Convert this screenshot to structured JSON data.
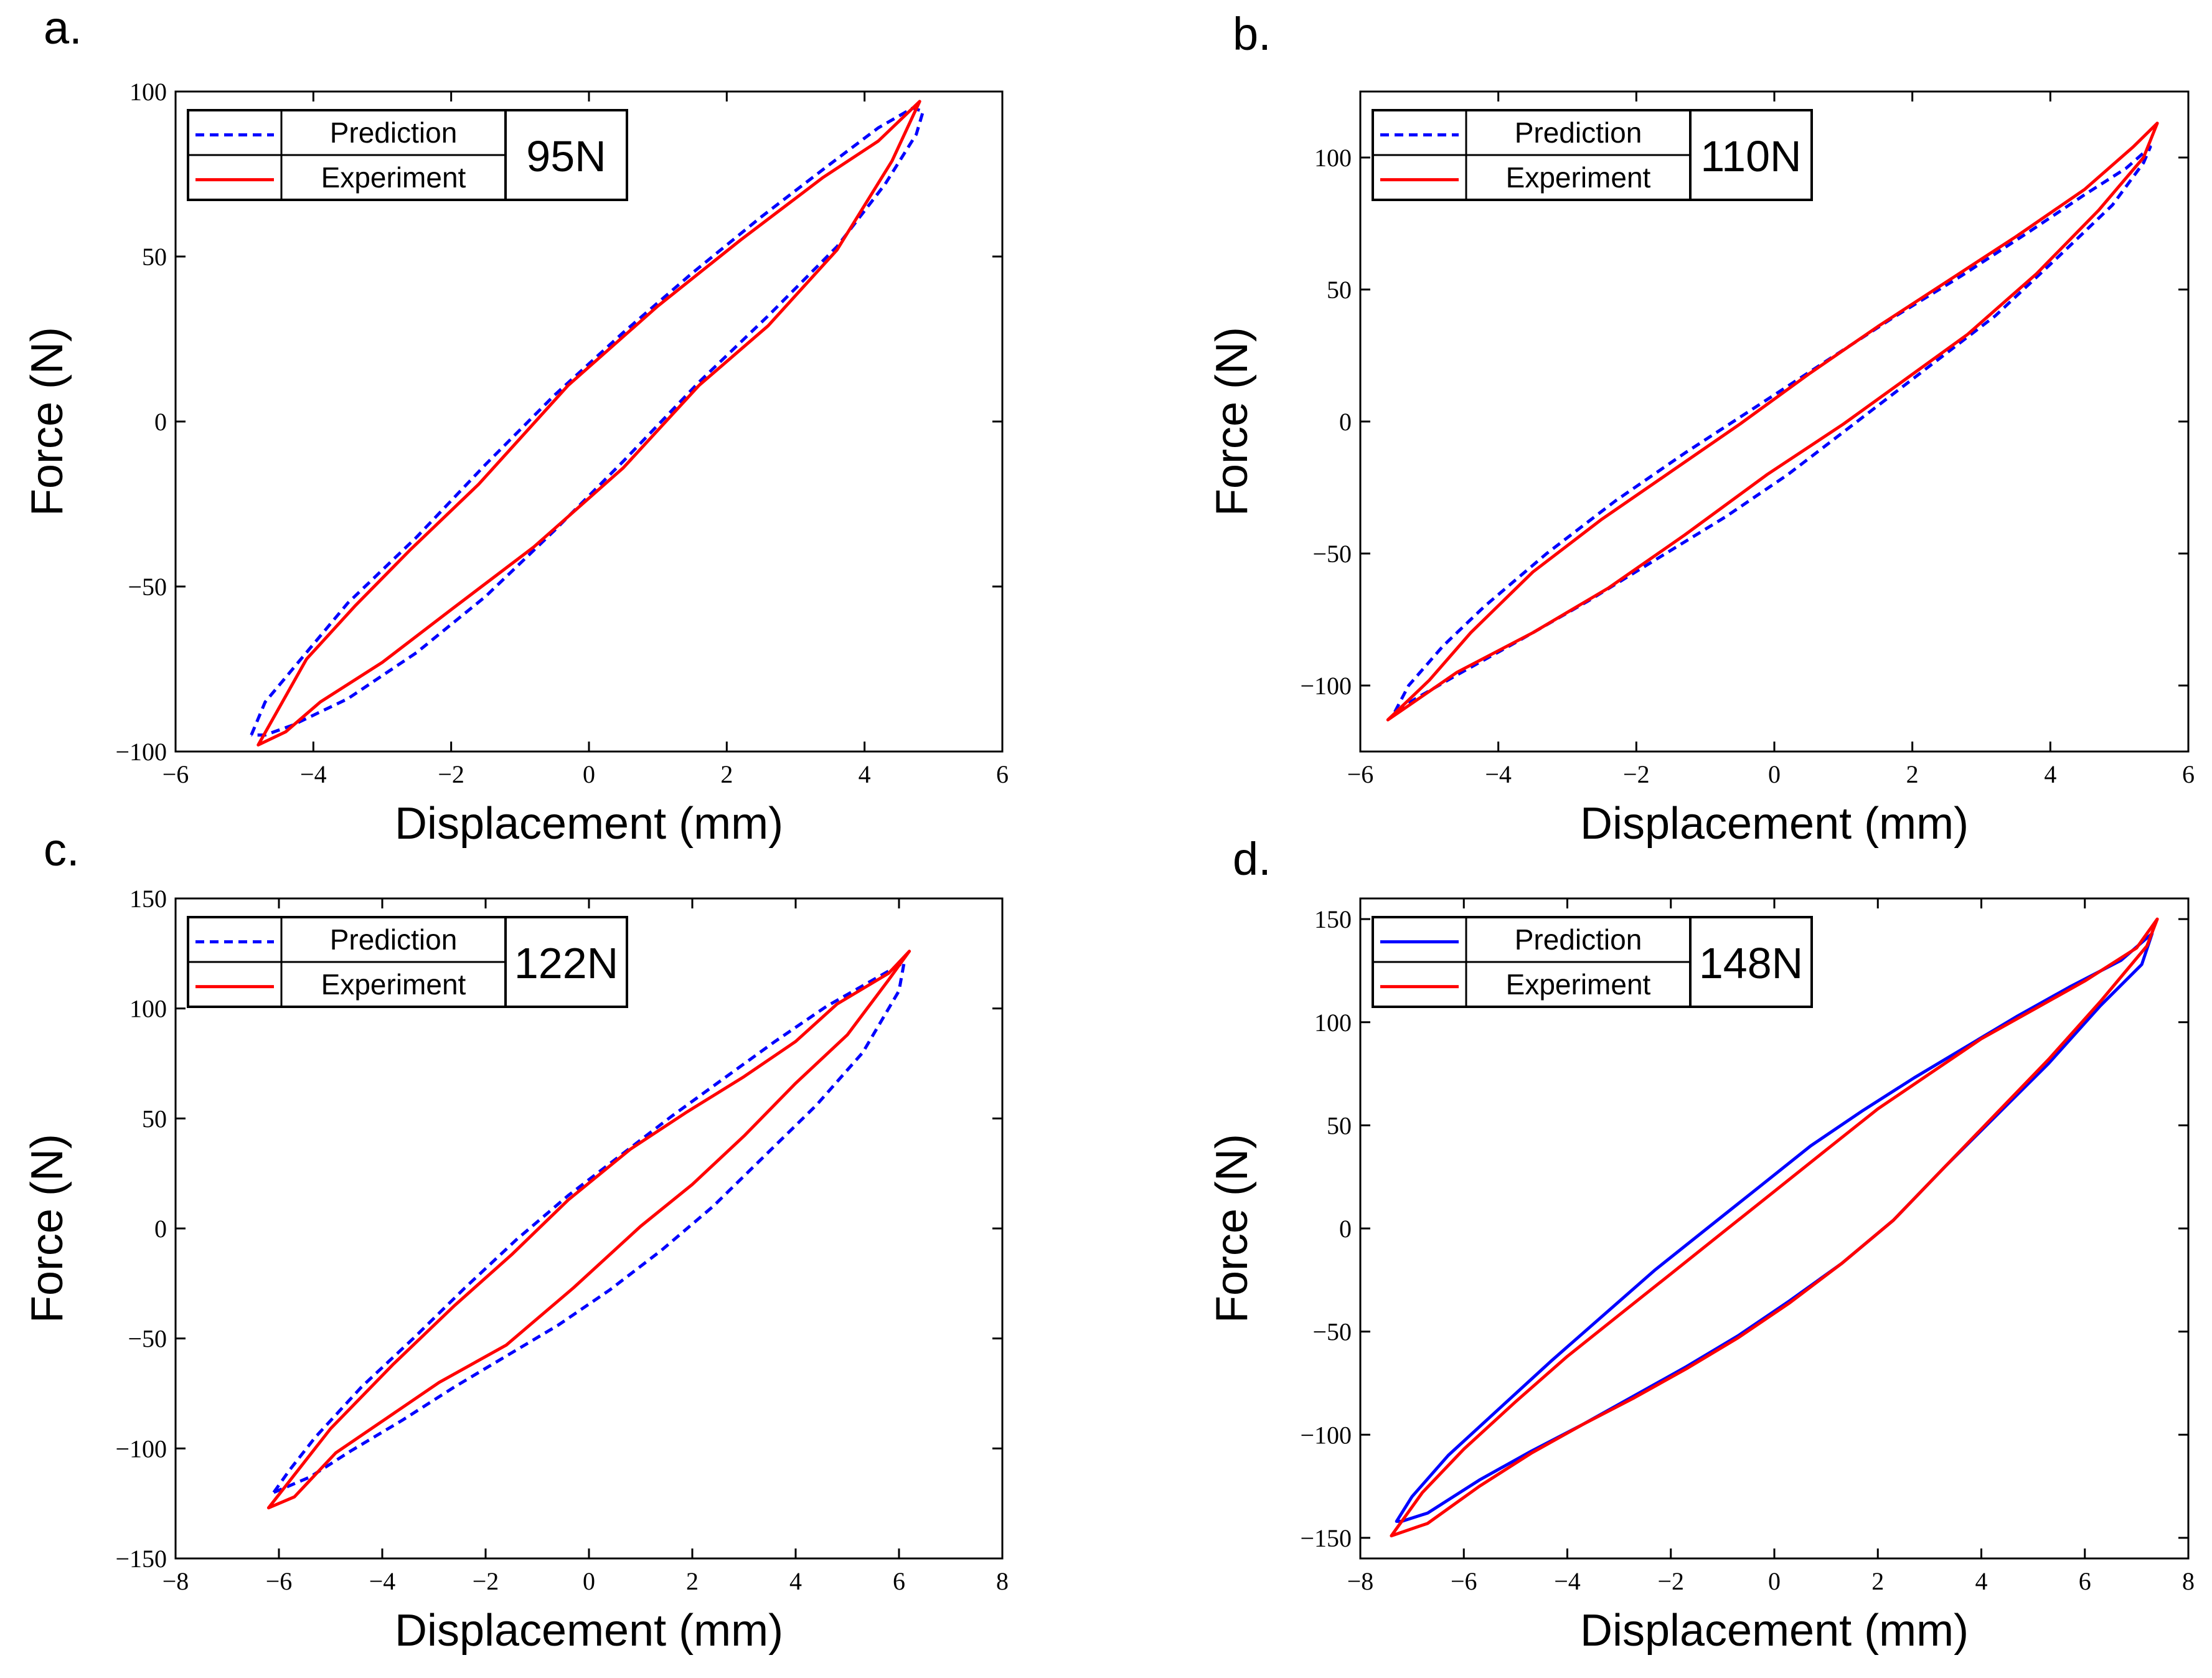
{
  "figure": {
    "panels": [
      {
        "letter": "a.",
        "force_label": "95N"
      },
      {
        "letter": "b.",
        "force_label": "110N"
      },
      {
        "letter": "c.",
        "force_label": "122N"
      },
      {
        "letter": "d.",
        "force_label": "148N"
      }
    ]
  },
  "colors": {
    "prediction": "#0000ff",
    "experiment": "#ff0000",
    "axis": "#000000"
  },
  "chart_data": [
    {
      "type": "line",
      "panel": "a.",
      "xlabel": "Displacement (mm)",
      "ylabel": "Force (N)",
      "xlim": [
        -6,
        6
      ],
      "ylim": [
        -100,
        100
      ],
      "xticks": [
        -6,
        -4,
        -2,
        0,
        2,
        4,
        6
      ],
      "yticks": [
        -100,
        -50,
        0,
        50,
        100
      ],
      "annotation": "95N",
      "legend": [
        "Prediction",
        "Experiment"
      ],
      "legend_position": "top-left",
      "series": [
        {
          "name": "Prediction",
          "style": "dashed",
          "x": [
            -4.9,
            -4.7,
            -4.3,
            -3.5,
            -2.5,
            -1.5,
            -0.5,
            0.5,
            1.5,
            2.5,
            3.5,
            4.2,
            4.7,
            4.85,
            4.75,
            4.3,
            3.6,
            2.6,
            1.6,
            0.5,
            -0.5,
            -1.5,
            -2.5,
            -3.5,
            -4.3,
            -4.7,
            -4.9
          ],
          "y": [
            -95,
            -85,
            -75,
            -55,
            -35,
            -13,
            8,
            27,
            45,
            62,
            78,
            89,
            95,
            94,
            87,
            72,
            53,
            32,
            12,
            -12,
            -33,
            -53,
            -70,
            -84,
            -92,
            -95,
            -95
          ]
        },
        {
          "name": "Experiment",
          "style": "solid",
          "x": [
            -4.8,
            -4.1,
            -3.4,
            -2.6,
            -1.6,
            -0.3,
            1.0,
            2.2,
            3.4,
            4.2,
            4.8,
            4.4,
            3.6,
            2.6,
            1.6,
            0.5,
            -0.8,
            -2.0,
            -3.0,
            -3.9,
            -4.4,
            -4.8
          ],
          "y": [
            -98,
            -72,
            -56,
            -39,
            -19,
            11,
            35,
            55,
            74,
            85,
            97,
            79,
            52,
            29,
            11,
            -14,
            -38,
            -57,
            -73,
            -85,
            -94,
            -98
          ]
        }
      ]
    },
    {
      "type": "line",
      "panel": "b.",
      "xlabel": "Displacement (mm)",
      "ylabel": "Force (N)",
      "xlim": [
        -6,
        6
      ],
      "ylim": [
        -125,
        125
      ],
      "xticks": [
        -6,
        -4,
        -2,
        0,
        2,
        4,
        6
      ],
      "yticks": [
        -100,
        -50,
        0,
        50,
        100
      ],
      "annotation": "110N",
      "legend": [
        "Prediction",
        "Experiment"
      ],
      "legend_position": "top-left",
      "series": [
        {
          "name": "Prediction",
          "style": "dashed",
          "x": [
            -5.5,
            -5.3,
            -4.8,
            -4.2,
            -3.3,
            -2.3,
            -1.3,
            -0.3,
            0.7,
            1.7,
            2.7,
            3.7,
            4.5,
            5.1,
            5.45,
            5.35,
            4.9,
            4.1,
            3.2,
            2.2,
            1.2,
            0.2,
            -0.7,
            -1.7,
            -2.7,
            -3.7,
            -4.6,
            -5.2,
            -5.5
          ],
          "y": [
            -110,
            -100,
            -85,
            -70,
            -50,
            -30,
            -12,
            5,
            22,
            39,
            55,
            72,
            86,
            96,
            104,
            98,
            82,
            62,
            40,
            20,
            0,
            -20,
            -36,
            -52,
            -68,
            -83,
            -96,
            -105,
            -110
          ]
        },
        {
          "name": "Experiment",
          "style": "solid",
          "x": [
            -5.6,
            -5.0,
            -4.4,
            -3.5,
            -2.5,
            -1.5,
            -0.5,
            0.5,
            1.5,
            2.5,
            3.5,
            4.5,
            5.2,
            5.55,
            5.35,
            4.7,
            3.8,
            2.8,
            1.9,
            1.0,
            -0.1,
            -1.3,
            -2.4,
            -3.5,
            -4.6,
            -5.1,
            -5.6
          ],
          "y": [
            -113,
            -98,
            -80,
            -57,
            -37,
            -19,
            -1,
            18,
            36,
            53,
            70,
            88,
            104,
            113,
            100,
            80,
            56,
            33,
            16,
            -1,
            -20,
            -43,
            -63,
            -80,
            -95,
            -104,
            -113
          ]
        }
      ]
    },
    {
      "type": "line",
      "panel": "c.",
      "xlabel": "Displacement (mm)",
      "ylabel": "Force (N)",
      "xlim": [
        -8,
        8
      ],
      "ylim": [
        -150,
        150
      ],
      "xticks": [
        -8,
        -6,
        -4,
        -2,
        0,
        2,
        4,
        6,
        8
      ],
      "yticks": [
        -150,
        -100,
        -50,
        0,
        50,
        100,
        150
      ],
      "annotation": "122N",
      "legend": [
        "Prediction",
        "Experiment"
      ],
      "legend_position": "top-left",
      "series": [
        {
          "name": "Prediction",
          "style": "dashed",
          "x": [
            -6.1,
            -5.8,
            -5.3,
            -4.4,
            -3.4,
            -2.4,
            -1.4,
            -0.4,
            0.6,
            1.6,
            2.6,
            3.6,
            4.6,
            5.5,
            6.1,
            6.0,
            5.3,
            4.4,
            3.4,
            2.4,
            1.4,
            0.4,
            -0.6,
            -1.6,
            -2.6,
            -3.6,
            -4.6,
            -5.4,
            -6.1
          ],
          "y": [
            -120,
            -110,
            -95,
            -72,
            -50,
            -27,
            -5,
            15,
            33,
            51,
            68,
            85,
            101,
            113,
            121,
            108,
            80,
            56,
            33,
            10,
            -10,
            -28,
            -44,
            -58,
            -72,
            -87,
            -101,
            -113,
            -120
          ]
        },
        {
          "name": "Experiment",
          "style": "solid",
          "x": [
            -6.2,
            -5.0,
            -3.8,
            -2.6,
            -1.5,
            -0.4,
            0.8,
            1.9,
            3.0,
            4.0,
            4.8,
            5.8,
            6.2,
            5.8,
            5.0,
            4.0,
            3.0,
            2.0,
            1.0,
            -0.3,
            -1.6,
            -2.9,
            -3.9,
            -4.9,
            -5.7,
            -6.2
          ],
          "y": [
            -127,
            -91,
            -62,
            -35,
            -12,
            13,
            36,
            53,
            69,
            85,
            102,
            116,
            126,
            113,
            88,
            66,
            42,
            20,
            1,
            -27,
            -53,
            -70,
            -86,
            -102,
            -122,
            -127
          ]
        }
      ]
    },
    {
      "type": "line",
      "panel": "d.",
      "xlabel": "Displacement (mm)",
      "ylabel": "Force (N)",
      "xlim": [
        -8,
        8
      ],
      "ylim": [
        -160,
        160
      ],
      "xticks": [
        -8,
        -6,
        -4,
        -2,
        0,
        2,
        4,
        6,
        8
      ],
      "yticks": [
        -150,
        -100,
        -50,
        0,
        50,
        100,
        150
      ],
      "annotation": "148N",
      "legend": [
        "Prediction",
        "Experiment"
      ],
      "legend_position": "top-left",
      "series": [
        {
          "name": "Prediction",
          "style": "solid",
          "x": [
            -7.3,
            -7.0,
            -6.3,
            -5.3,
            -4.3,
            -3.3,
            -2.3,
            -1.3,
            -0.3,
            0.7,
            1.7,
            2.7,
            3.7,
            4.7,
            5.7,
            6.7,
            7.3,
            7.1,
            6.3,
            5.3,
            4.3,
            3.3,
            2.3,
            1.3,
            0.3,
            -0.7,
            -1.7,
            -2.7,
            -3.7,
            -4.7,
            -5.7,
            -6.7,
            -7.2,
            -7.3
          ],
          "y": [
            -142,
            -130,
            -110,
            -87,
            -64,
            -42,
            -20,
            0,
            20,
            40,
            57,
            73,
            88,
            103,
            117,
            130,
            143,
            128,
            108,
            80,
            55,
            30,
            4,
            -17,
            -35,
            -52,
            -67,
            -81,
            -95,
            -108,
            -122,
            -138,
            -142,
            -142
          ]
        },
        {
          "name": "Experiment",
          "style": "solid",
          "x": [
            -7.4,
            -6.8,
            -6.0,
            -5.0,
            -4.0,
            -3.0,
            -2.0,
            -1.0,
            0.0,
            1.0,
            2.0,
            3.0,
            4.0,
            5.0,
            6.0,
            7.0,
            7.4,
            7.2,
            6.3,
            5.3,
            4.3,
            3.3,
            2.3,
            1.3,
            0.3,
            -0.7,
            -1.7,
            -2.7,
            -3.7,
            -4.7,
            -5.7,
            -6.7,
            -7.4
          ],
          "y": [
            -149,
            -128,
            -107,
            -84,
            -62,
            -42,
            -22,
            -2,
            18,
            38,
            58,
            75,
            92,
            106,
            120,
            136,
            150,
            137,
            110,
            82,
            56,
            30,
            4,
            -17,
            -36,
            -53,
            -68,
            -82,
            -95,
            -109,
            -125,
            -143,
            -149
          ]
        }
      ]
    }
  ]
}
